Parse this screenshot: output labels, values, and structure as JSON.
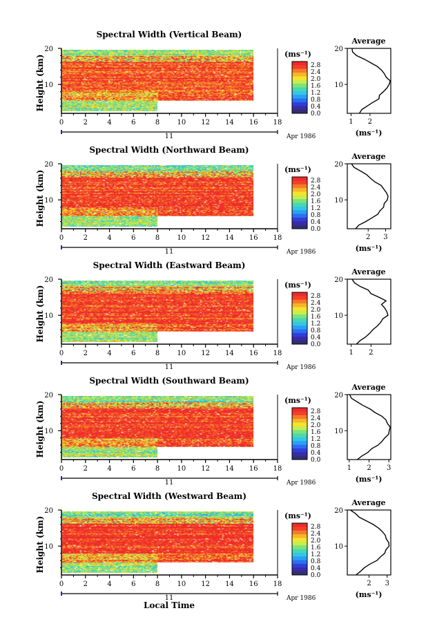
{
  "chart_data": {
    "type": "heatmap",
    "xlabel": "Local Time",
    "date_label": "11",
    "date_suffix": "Apr 1986",
    "xticks": [
      "0",
      "2",
      "4",
      "6",
      "8",
      "10",
      "12",
      "14",
      "16",
      "18"
    ],
    "xlim": [
      0,
      18
    ],
    "ylabel": "Height (km)",
    "yticks": [
      "20",
      "10"
    ],
    "ylim": [
      2,
      20
    ],
    "colorbar": {
      "unit": "(ms⁻¹)",
      "ticks": [
        "2.8",
        "2.4",
        "2.0",
        "1.6",
        "1.2",
        "0.8",
        "0.4",
        "0.0"
      ],
      "range": [
        0,
        3.0
      ],
      "colors": [
        "#303070",
        "#3a2aa8",
        "#2f3fd8",
        "#2b6ff0",
        "#2aa0f4",
        "#35c6e6",
        "#48d8b0",
        "#7fe27a",
        "#c6ee4e",
        "#f4e42c",
        "#f7b52a",
        "#f57a2a",
        "#f23f2a",
        "#ee2a2a"
      ]
    },
    "panels": [
      {
        "title": "Spectral Width (Vertical Beam)",
        "profile": {
          "title": "Average",
          "unit": "(ms⁻¹)",
          "xticks": [
            "1",
            "2"
          ],
          "xlim": [
            0.8,
            3.1
          ],
          "height": [
            2,
            3,
            4,
            5,
            6,
            7,
            8,
            9,
            10,
            11,
            12,
            13,
            14,
            15,
            16,
            17,
            18,
            19,
            20
          ],
          "values": [
            1.4,
            1.6,
            1.9,
            2.2,
            2.45,
            2.55,
            2.7,
            2.85,
            2.95,
            3.0,
            2.9,
            2.7,
            2.55,
            2.35,
            2.1,
            1.7,
            1.35,
            1.1,
            1.0
          ]
        }
      },
      {
        "title": "Spectral Width (Northward Beam)",
        "profile": {
          "title": "Average",
          "unit": "(ms⁻¹)",
          "xticks": [
            "2",
            "3"
          ],
          "xlim": [
            0.8,
            3.3
          ],
          "height": [
            2,
            3,
            4,
            5,
            6,
            7,
            8,
            9,
            10,
            11,
            12,
            13,
            14,
            15,
            16,
            17,
            18,
            19,
            20
          ],
          "values": [
            1.3,
            1.5,
            1.8,
            2.2,
            2.5,
            2.7,
            2.85,
            3.0,
            3.1,
            3.2,
            3.1,
            2.9,
            2.7,
            2.45,
            2.2,
            1.9,
            1.5,
            1.2,
            1.0
          ]
        }
      },
      {
        "title": "Spectral Width (Eastward Beam)",
        "profile": {
          "title": "Average",
          "unit": "",
          "xticks": [
            "1",
            "2"
          ],
          "xlim": [
            0.8,
            3.0
          ],
          "height": [
            2,
            3,
            4,
            5,
            6,
            7,
            8,
            9,
            10,
            11,
            12,
            13,
            14,
            15,
            16,
            17,
            18,
            19,
            20
          ],
          "values": [
            1.3,
            1.5,
            1.7,
            1.9,
            2.1,
            2.3,
            2.5,
            2.65,
            2.8,
            2.85,
            2.75,
            2.55,
            2.7,
            2.35,
            2.0,
            1.8,
            1.45,
            1.15,
            1.0
          ]
        }
      },
      {
        "title": "Spectral Width (Southward Beam)",
        "profile": {
          "title": "Average",
          "unit": "(ms⁻¹)",
          "xticks": [
            "1",
            "2",
            "3"
          ],
          "xlim": [
            0.9,
            3.1
          ],
          "height": [
            2,
            3,
            4,
            5,
            6,
            7,
            8,
            9,
            10,
            11,
            12,
            13,
            14,
            15,
            16,
            17,
            18,
            19,
            20
          ],
          "values": [
            1.4,
            1.6,
            1.9,
            2.2,
            2.45,
            2.65,
            2.8,
            2.95,
            3.05,
            3.05,
            2.95,
            2.8,
            2.6,
            2.35,
            2.05,
            1.75,
            1.4,
            1.1,
            1.0
          ]
        }
      },
      {
        "title": "Spectral Width (Westward Beam)",
        "profile": {
          "title": "Average",
          "unit": "(ms⁻¹)",
          "xticks": [
            "2",
            "3"
          ],
          "xlim": [
            0.8,
            3.2
          ],
          "height": [
            2,
            3,
            4,
            5,
            6,
            7,
            8,
            9,
            10,
            11,
            12,
            13,
            14,
            15,
            16,
            17,
            18,
            19,
            20
          ],
          "values": [
            1.3,
            1.5,
            1.8,
            2.1,
            2.4,
            2.6,
            2.8,
            2.95,
            3.05,
            3.1,
            3.0,
            2.85,
            2.7,
            2.5,
            2.2,
            1.9,
            1.5,
            1.2,
            1.0
          ]
        }
      }
    ]
  }
}
